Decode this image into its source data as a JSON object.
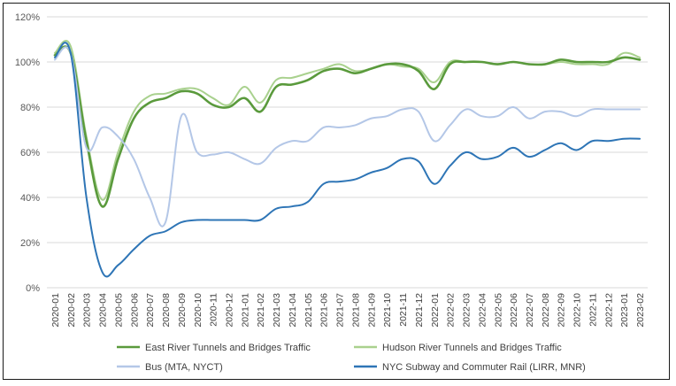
{
  "chart_data": {
    "type": "line",
    "title": "",
    "xlabel": "",
    "ylabel": "",
    "ylim": [
      0,
      120
    ],
    "y_ticks": [
      0,
      20,
      40,
      60,
      80,
      100,
      120
    ],
    "y_tick_labels": [
      "0%",
      "20%",
      "40%",
      "60%",
      "80%",
      "100%",
      "120%"
    ],
    "grid": "horizontal",
    "legend_position": "bottom",
    "categories": [
      "2020-01",
      "2020-02",
      "2020-03",
      "2020-04",
      "2020-05",
      "2020-06",
      "2020-07",
      "2020-08",
      "2020-09",
      "2020-10",
      "2020-11",
      "2020-12",
      "2021-01",
      "2021-02",
      "2021-03",
      "2021-04",
      "2021-05",
      "2021-06",
      "2021-07",
      "2021-08",
      "2021-09",
      "2021-10",
      "2021-11",
      "2021-12",
      "2022-01",
      "2022-02",
      "2022-03",
      "2022-04",
      "2022-05",
      "2022-06",
      "2022-07",
      "2022-08",
      "2022-09",
      "2022-10",
      "2022-11",
      "2022-12",
      "2023-01",
      "2023-02"
    ],
    "series": [
      {
        "name": "East River Tunnels and Bridges Traffic",
        "color": "#5a9a3c",
        "width": 2.6,
        "values": [
          103,
          104,
          65,
          36,
          57,
          75,
          82,
          84,
          87,
          86,
          81,
          80,
          84,
          78,
          89,
          90,
          92,
          96,
          97,
          95,
          97,
          99,
          99,
          96,
          88,
          99,
          100,
          100,
          99,
          100,
          99,
          99,
          101,
          100,
          100,
          100,
          102,
          101
        ]
      },
      {
        "name": "Hudson River Tunnels and Bridges Traffic",
        "color": "#a9d18e",
        "width": 2.0,
        "values": [
          104,
          107,
          67,
          39,
          60,
          78,
          85,
          86,
          88,
          88,
          84,
          81,
          89,
          82,
          92,
          93,
          95,
          97,
          99,
          96,
          97,
          99,
          98,
          97,
          91,
          100,
          100,
          100,
          99,
          100,
          99,
          99,
          100,
          99,
          99,
          99,
          104,
          102
        ]
      },
      {
        "name": "Bus (MTA, NYCT)",
        "color": "#b4c7e7",
        "width": 2.0,
        "values": [
          101,
          104,
          62,
          71,
          67,
          57,
          40,
          29,
          76,
          60,
          59,
          60,
          57,
          55,
          62,
          65,
          65,
          71,
          71,
          72,
          75,
          76,
          79,
          78,
          65,
          72,
          79,
          76,
          76,
          80,
          75,
          78,
          78,
          76,
          79,
          79,
          79,
          79
        ]
      },
      {
        "name": "NYC Subway and Commuter Rail (LIRR, MNR)",
        "color": "#2e75b6",
        "width": 2.0,
        "values": [
          102,
          104,
          40,
          7,
          10,
          17,
          23,
          25,
          29,
          30,
          30,
          30,
          30,
          30,
          35,
          36,
          38,
          46,
          47,
          48,
          51,
          53,
          57,
          56,
          46,
          54,
          60,
          57,
          58,
          62,
          58,
          61,
          64,
          61,
          65,
          65,
          66,
          66
        ]
      }
    ]
  }
}
